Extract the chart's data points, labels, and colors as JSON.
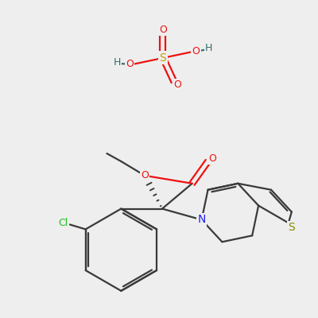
{
  "background_color": "#eeeeee",
  "colors": {
    "C": "#3a3a3a",
    "N": "#2020ee",
    "O": "#ee1111",
    "S_sulfate": "#c8a000",
    "S_thio": "#8a8a00",
    "Cl": "#20bb20",
    "H": "#3a6a6a",
    "bond": "#3a3a3a"
  },
  "bond_lw": 1.6
}
